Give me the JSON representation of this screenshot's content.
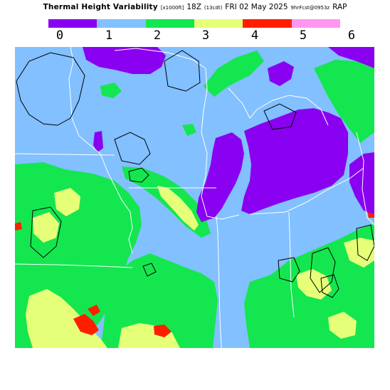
{
  "title": {
    "main": "Thermal Height Variability",
    "units": "[x1000ft]",
    "valid_time": "18Z",
    "local_time": "(13cdt)",
    "date": "FRI 02 May 2025",
    "forecast": "9hrFcst@0953z",
    "model": "RAP"
  },
  "legend": {
    "labels": [
      "0",
      "1",
      "2",
      "3",
      "4",
      "5",
      "6"
    ],
    "colors": [
      "#8a00f0",
      "#82c0ff",
      "#14e650",
      "#e6ff78",
      "#ff1e00",
      "#ff96f0"
    ]
  },
  "map": {
    "colors": {
      "band_0_1": "#8a00f0",
      "band_1_2": "#82c0ff",
      "band_2_3": "#14e650",
      "band_3_4": "#e6ff78",
      "band_4_5": "#ff1e00",
      "state_lines": "#ffffff",
      "contour_lines": "#000000"
    }
  }
}
